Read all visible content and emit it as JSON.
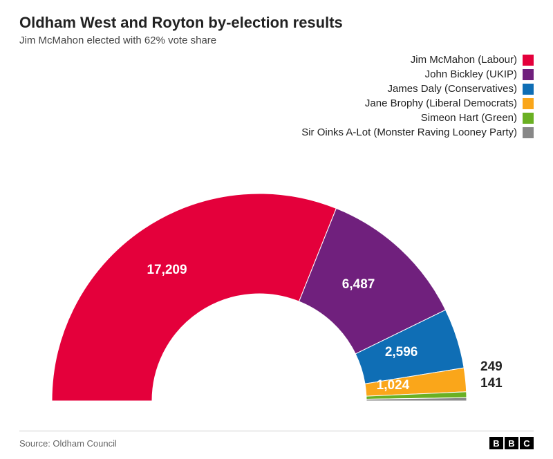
{
  "title": "Oldham West and Royton by-election results",
  "subtitle": "Jim McMahon elected with 62% vote share",
  "source": "Source: Oldham Council",
  "logo": [
    "B",
    "B",
    "C"
  ],
  "chart": {
    "type": "half-donut",
    "background": "#ffffff",
    "inner_radius": 155,
    "outer_radius": 300,
    "candidates": [
      {
        "label": "Jim McMahon (Labour)",
        "votes": 17209,
        "display": "17,209",
        "color": "#e4003b"
      },
      {
        "label": "John Bickley (UKIP)",
        "votes": 6487,
        "display": "6,487",
        "color": "#70207d"
      },
      {
        "label": "James Daly (Conservatives)",
        "votes": 2596,
        "display": "2,596",
        "color": "#0f6eb5"
      },
      {
        "label": "Jane Brophy (Liberal Democrats)",
        "votes": 1024,
        "display": "1,024",
        "color": "#faa61a"
      },
      {
        "label": "Simeon Hart (Green)",
        "votes": 249,
        "display": "249",
        "color": "#6ab023"
      },
      {
        "label": "Sir Oinks A-Lot (Monster Raving Looney Party)",
        "votes": 141,
        "display": "141",
        "color": "#888888"
      }
    ]
  }
}
